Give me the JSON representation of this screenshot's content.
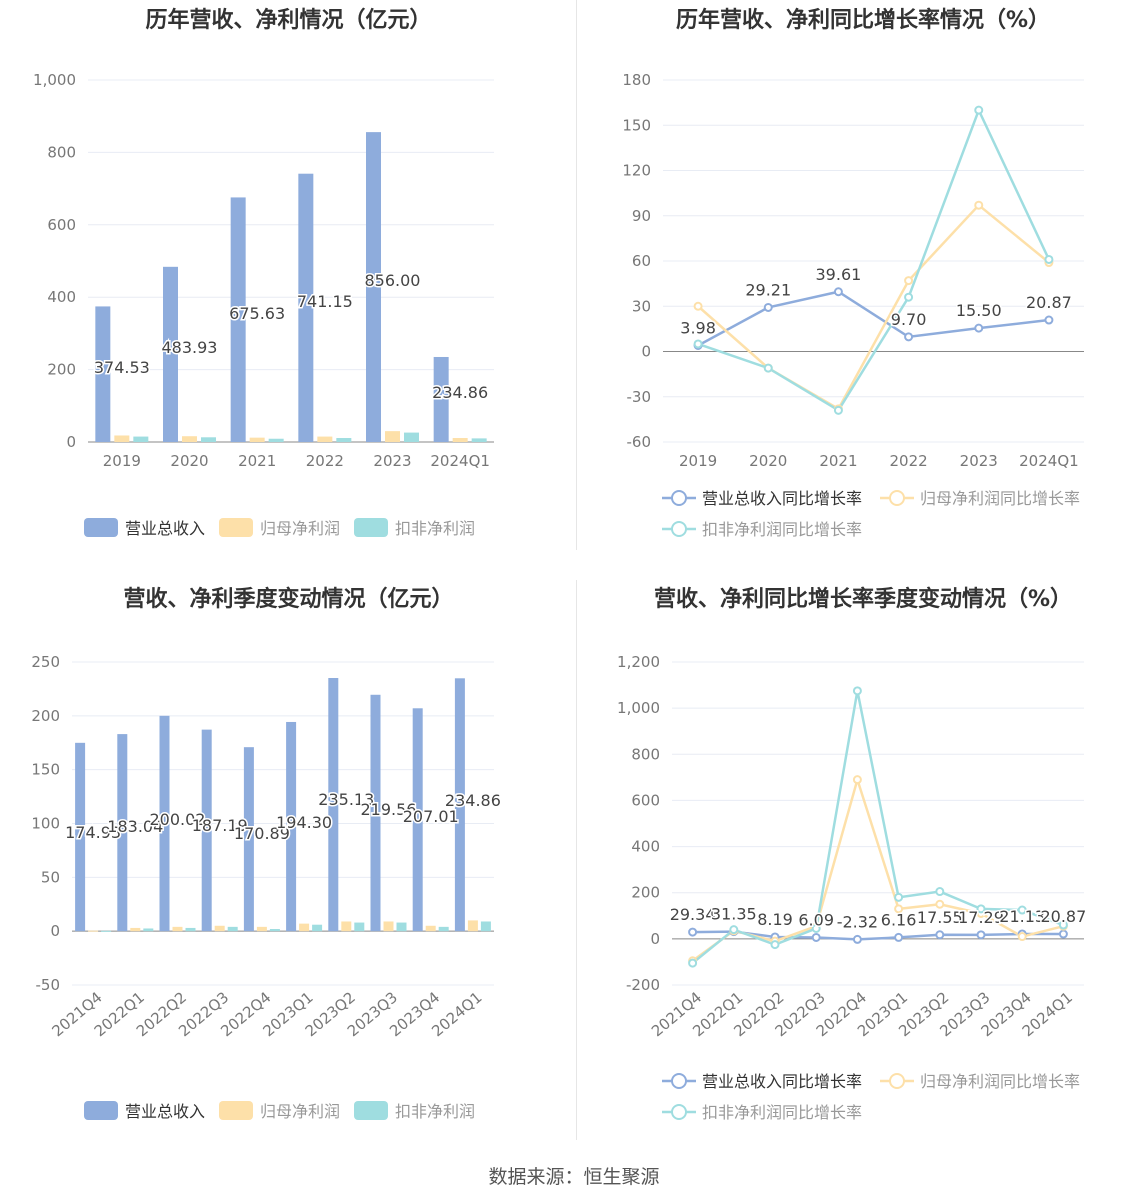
{
  "colors": {
    "revenue": "#8eacdc",
    "net_profit": "#fde0a9",
    "deducted_profit": "#9fdde0",
    "grid": "#e8ecf4",
    "axis": "#666666"
  },
  "legend": {
    "bar_items": [
      "营业总收入",
      "归母净利润",
      "扣非净利润"
    ],
    "line_items": [
      "营业总收入同比增长率",
      "归母净利润同比增长率",
      "扣非净利润同比增长率"
    ]
  },
  "source_text": "数据来源：恒生聚源",
  "chart_data": [
    {
      "id": "annual-bar",
      "type": "bar",
      "title": "历年营收、净利情况（亿元）",
      "categories": [
        "2019",
        "2020",
        "2021",
        "2022",
        "2023",
        "2024Q1"
      ],
      "ylim": [
        0,
        1000
      ],
      "yticks": [
        0,
        200,
        400,
        600,
        800,
        1000
      ],
      "ytick_labels": [
        "0",
        "200",
        "400",
        "600",
        "800",
        "1,000"
      ],
      "series": [
        {
          "name": "营业总收入",
          "values": [
            374.53,
            483.93,
            675.63,
            741.15,
            856.0,
            234.86
          ],
          "labels": [
            "374.53",
            "483.93",
            "675.63",
            "741.15",
            "856.00",
            "234.86"
          ]
        },
        {
          "name": "归母净利润",
          "values": [
            18,
            16,
            12,
            15,
            30,
            11
          ]
        },
        {
          "name": "扣非净利润",
          "values": [
            15,
            13,
            9,
            11,
            26,
            10
          ]
        }
      ],
      "grid": true,
      "legend_position": "bottom"
    },
    {
      "id": "annual-line",
      "type": "line",
      "title": "历年营收、净利同比增长率情况（%）",
      "categories": [
        "2019",
        "2020",
        "2021",
        "2022",
        "2023",
        "2024Q1"
      ],
      "ylim": [
        -60,
        180
      ],
      "yticks": [
        -60,
        -30,
        0,
        30,
        60,
        90,
        120,
        150,
        180
      ],
      "ytick_labels": [
        "-60",
        "-30",
        "0",
        "30",
        "60",
        "90",
        "120",
        "150",
        "180"
      ],
      "series": [
        {
          "name": "营业总收入同比增长率",
          "values": [
            3.98,
            29.21,
            39.61,
            9.7,
            15.5,
            20.87
          ],
          "labels": [
            "3.98",
            "29.21",
            "39.61",
            "9.70",
            "15.50",
            "20.87"
          ]
        },
        {
          "name": "归母净利润同比增长率",
          "values": [
            30,
            -11,
            -38,
            47,
            97,
            59
          ]
        },
        {
          "name": "扣非净利润同比增长率",
          "values": [
            5,
            -11,
            -39,
            36,
            160,
            61
          ]
        }
      ],
      "grid": true,
      "legend_position": "bottom"
    },
    {
      "id": "quarter-bar",
      "type": "bar",
      "title": "营收、净利季度变动情况（亿元）",
      "categories": [
        "2021Q4",
        "2022Q1",
        "2022Q2",
        "2022Q3",
        "2022Q4",
        "2023Q1",
        "2023Q2",
        "2023Q3",
        "2023Q4",
        "2024Q1"
      ],
      "ylim": [
        -50,
        250
      ],
      "yticks": [
        -50,
        0,
        50,
        100,
        150,
        200,
        250
      ],
      "ytick_labels": [
        "-50",
        "0",
        "50",
        "100",
        "150",
        "200",
        "250"
      ],
      "series": [
        {
          "name": "营业总收入",
          "values": [
            174.93,
            183.04,
            200.02,
            187.19,
            170.89,
            194.3,
            235.13,
            219.56,
            207.01,
            234.86
          ],
          "labels": [
            "174.93",
            "183.04",
            "200.02",
            "187.19",
            "170.89",
            "194.30",
            "235.13",
            "219.56",
            "207.01",
            "234.86"
          ]
        },
        {
          "name": "归母净利润",
          "values": [
            0.5,
            3,
            4,
            5,
            4,
            7,
            9,
            9,
            5,
            10
          ]
        },
        {
          "name": "扣非净利润",
          "values": [
            0.3,
            2.5,
            3,
            4,
            2,
            6,
            8,
            8,
            4,
            9
          ]
        }
      ],
      "grid": true,
      "legend_position": "bottom"
    },
    {
      "id": "quarter-line",
      "type": "line",
      "title": "营收、净利同比增长率季度变动情况（%）",
      "categories": [
        "2021Q4",
        "2022Q1",
        "2022Q2",
        "2022Q3",
        "2022Q4",
        "2023Q1",
        "2023Q2",
        "2023Q3",
        "2023Q4",
        "2024Q1"
      ],
      "ylim": [
        -200,
        1200
      ],
      "yticks": [
        -200,
        0,
        200,
        400,
        600,
        800,
        1000,
        1200
      ],
      "ytick_labels": [
        "-200",
        "0",
        "200",
        "400",
        "600",
        "800",
        "1,000",
        "1,200"
      ],
      "series": [
        {
          "name": "营业总收入同比增长率",
          "values": [
            29.34,
            31.35,
            8.19,
            6.09,
            -2.32,
            6.16,
            17.55,
            17.29,
            21.13,
            20.87
          ],
          "labels": [
            "29.34",
            "31.35",
            "8.19",
            "6.09",
            "-2.32",
            "6.16",
            "17.55",
            "17.29",
            "21.13",
            "20.87"
          ]
        },
        {
          "name": "归母净利润同比增长率",
          "values": [
            -95,
            35,
            -10,
            55,
            690,
            130,
            150,
            110,
            10,
            55
          ]
        },
        {
          "name": "扣非净利润同比增长率",
          "values": [
            -105,
            40,
            -25,
            45,
            1075,
            180,
            205,
            130,
            125,
            60
          ]
        }
      ],
      "grid": true,
      "legend_position": "bottom"
    }
  ]
}
